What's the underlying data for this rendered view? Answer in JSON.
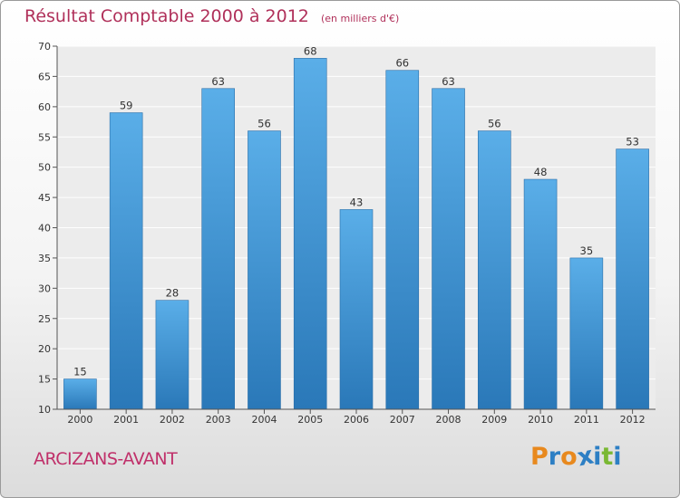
{
  "header": {
    "title": "Résultat Comptable 2000 à 2012",
    "subtitle": "(en milliers d'€)"
  },
  "footer": {
    "place": "ARCIZANS-AVANT",
    "logo": "Proxiti"
  },
  "colors": {
    "bar_light": "#5aaee8",
    "bar_dark": "#2a78b8",
    "title": "#b0305a",
    "logo": [
      "#e8891e",
      "#2d7fc4",
      "#e8891e",
      "#2d7fc4",
      "#2d7fc4",
      "#7ab833",
      "#2d7fc4"
    ]
  },
  "chart_data": {
    "type": "bar",
    "title": "Résultat Comptable 2000 à 2012",
    "categories": [
      "2000",
      "2001",
      "2002",
      "2003",
      "2004",
      "2005",
      "2006",
      "2007",
      "2008",
      "2009",
      "2010",
      "2011",
      "2012"
    ],
    "values": [
      15,
      59,
      28,
      63,
      56,
      68,
      43,
      66,
      63,
      56,
      48,
      35,
      53
    ],
    "ylim": [
      10,
      70
    ],
    "yticks": [
      10,
      15,
      20,
      25,
      30,
      35,
      40,
      45,
      50,
      55,
      60,
      65,
      70
    ],
    "grid": true,
    "data_labels": true
  }
}
